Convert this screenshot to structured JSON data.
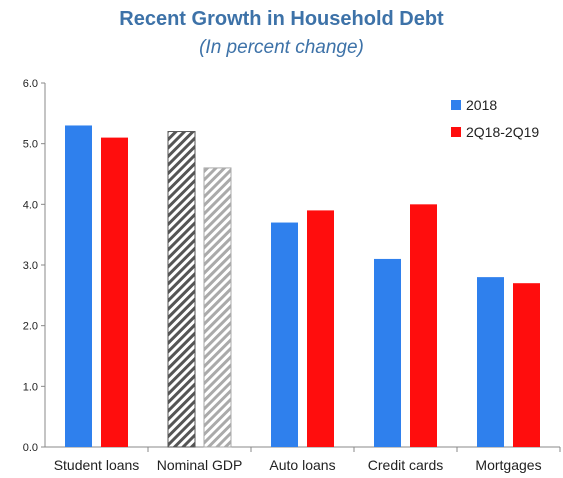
{
  "chart_data": {
    "type": "bar",
    "title": "Recent Growth in Household Debt",
    "subtitle": "(In percent change)",
    "categories": [
      "Student loans",
      "Nominal GDP",
      "Auto loans",
      "Credit cards",
      "Mortgages"
    ],
    "series": [
      {
        "name": "2018",
        "values": [
          5.3,
          5.2,
          3.7,
          3.1,
          2.8
        ],
        "color": "#2f80ed"
      },
      {
        "name": "2Q18-2Q19",
        "values": [
          5.1,
          4.6,
          3.9,
          4.0,
          2.7
        ],
        "color": "#ff0d0d"
      }
    ],
    "hatched_category": "Nominal GDP",
    "hatch_colors": [
      "#555555",
      "#aaaaaa"
    ],
    "ylim": [
      0,
      6
    ],
    "yticks": [
      "0.0",
      "1.0",
      "2.0",
      "3.0",
      "4.0",
      "5.0",
      "6.0"
    ],
    "grid": false,
    "legend_position": "top-right"
  }
}
